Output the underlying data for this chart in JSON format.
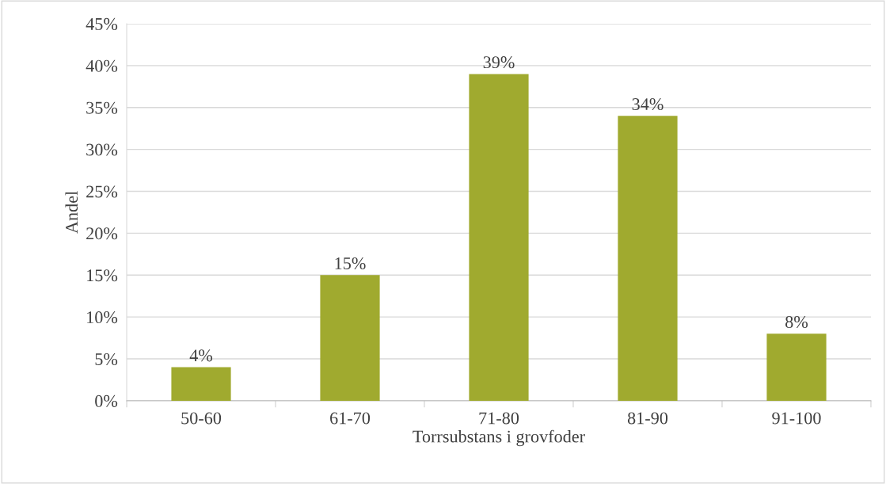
{
  "chart_data": {
    "type": "bar",
    "xlabel": "Torrsubstans i grovfoder",
    "ylabel": "Andel",
    "categories": [
      "50-60",
      "61-70",
      "71-80",
      "81-90",
      "91-100"
    ],
    "values": [
      4,
      15,
      39,
      34,
      8
    ],
    "value_labels": [
      "4%",
      "15%",
      "39%",
      "34%",
      "8%"
    ],
    "color": "#a0aa2f",
    "ylim": [
      0,
      45
    ],
    "yticks": [
      {
        "value": 0,
        "label": "0%"
      },
      {
        "value": 5,
        "label": "5%"
      },
      {
        "value": 10,
        "label": "10%"
      },
      {
        "value": 15,
        "label": "15%"
      },
      {
        "value": 20,
        "label": "20%"
      },
      {
        "value": 25,
        "label": "25%"
      },
      {
        "value": 30,
        "label": "30%"
      },
      {
        "value": 35,
        "label": "35%"
      },
      {
        "value": 40,
        "label": "40%"
      },
      {
        "value": 45,
        "label": "45%"
      }
    ],
    "grid": "y",
    "legend": false
  }
}
